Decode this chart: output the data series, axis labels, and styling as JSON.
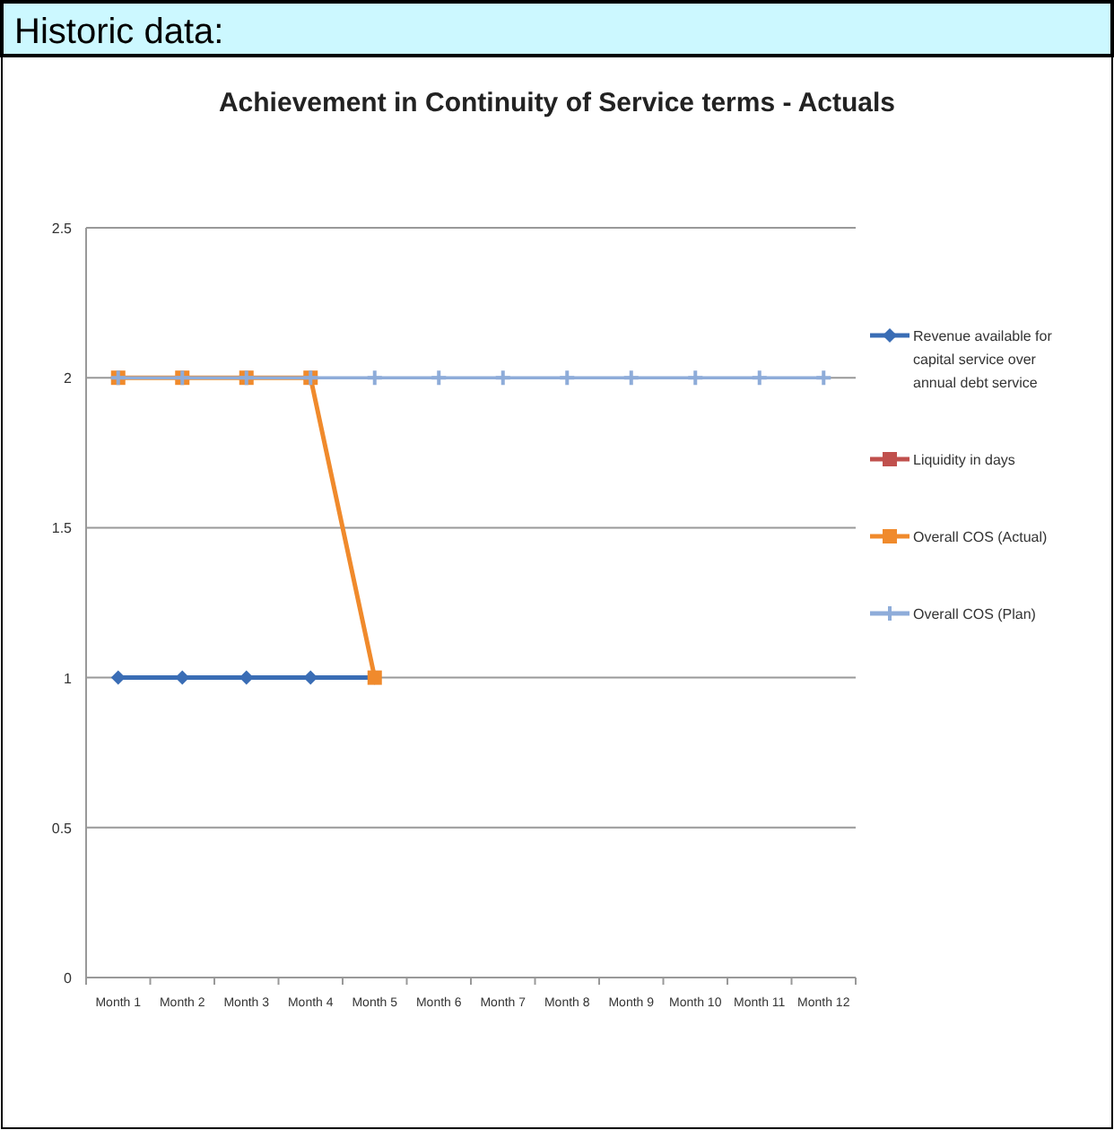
{
  "chart_data": {
    "type": "line",
    "title": "Achievement in Continuity of Service terms - Actuals",
    "annotations": [
      "Historic data:"
    ],
    "categories": [
      "Month 1",
      "Month 2",
      "Month 3",
      "Month 4",
      "Month 5",
      "Month 6",
      "Month 7",
      "Month 8",
      "Month 9",
      "Month 10",
      "Month 11",
      "Month 12"
    ],
    "series": [
      {
        "name": "Revenue available for capital service over annual debt service",
        "color": "#3a6db5",
        "marker": "diamond",
        "values": [
          1,
          1,
          1,
          1,
          1,
          null,
          null,
          null,
          null,
          null,
          null,
          null
        ]
      },
      {
        "name": "Liquidity in days",
        "color": "#c0504d",
        "marker": "square",
        "values": [
          null,
          null,
          null,
          null,
          null,
          null,
          null,
          null,
          null,
          null,
          null,
          null
        ]
      },
      {
        "name": "Overall COS (Actual)",
        "color": "#f08a2c",
        "marker": "square",
        "values": [
          2,
          2,
          2,
          2,
          1,
          null,
          null,
          null,
          null,
          null,
          null,
          null
        ]
      },
      {
        "name": "Overall COS (Plan)",
        "color": "#8eacd9",
        "marker": "cross",
        "values": [
          2,
          2,
          2,
          2,
          2,
          2,
          2,
          2,
          2,
          2,
          2,
          2
        ]
      }
    ],
    "ylim": [
      0,
      2.5
    ],
    "yticks": [
      0,
      0.5,
      1,
      1.5,
      2,
      2.5
    ],
    "grid": "y",
    "legend": "right"
  }
}
